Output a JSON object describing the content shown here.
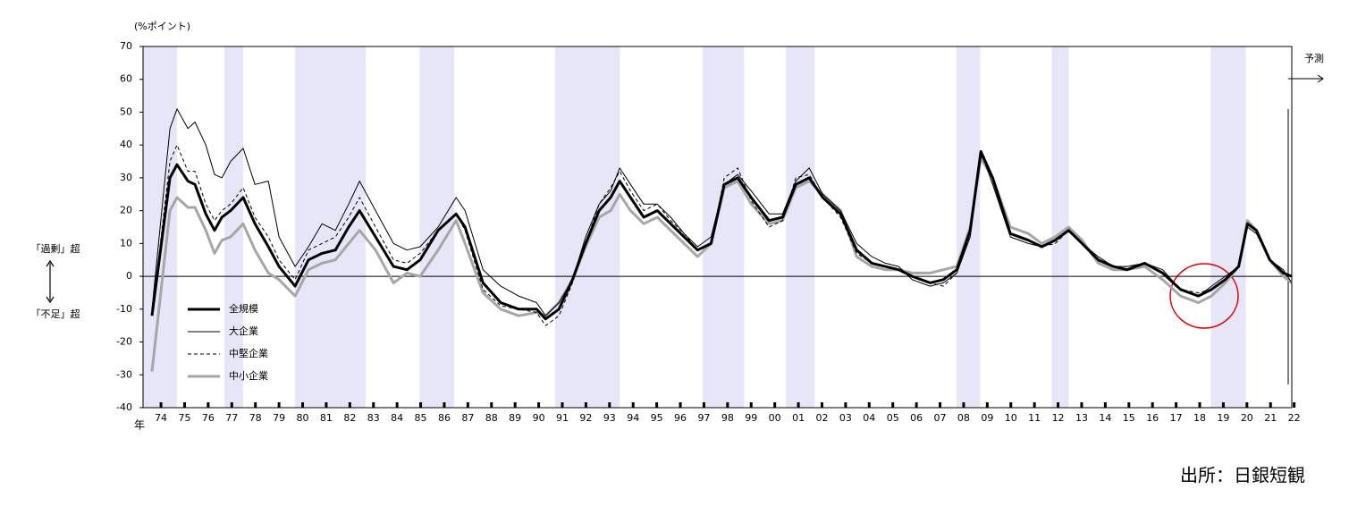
{
  "chart_data": {
    "type": "line",
    "unit_label": "(%ポイント)",
    "x_label": "年",
    "annotations": {
      "excess": "「過剰」超",
      "shortage": "「不足」超",
      "forecast": "予測"
    },
    "xlim": [
      1973.74,
      2022.4
    ],
    "ylim": [
      -40,
      70
    ],
    "yticks": [
      -40,
      -30,
      -20,
      -10,
      0,
      10,
      20,
      30,
      40,
      50,
      60,
      70
    ],
    "xticks": [
      {
        "value": 1974.5,
        "label": "74"
      },
      {
        "value": 1975.5,
        "label": "75"
      },
      {
        "value": 1976.5,
        "label": "76"
      },
      {
        "value": 1977.5,
        "label": "77"
      },
      {
        "value": 1978.5,
        "label": "78"
      },
      {
        "value": 1979.5,
        "label": "79"
      },
      {
        "value": 1980.5,
        "label": "80"
      },
      {
        "value": 1981.5,
        "label": "81"
      },
      {
        "value": 1982.5,
        "label": "82"
      },
      {
        "value": 1983.5,
        "label": "83"
      },
      {
        "value": 1984.5,
        "label": "84"
      },
      {
        "value": 1985.5,
        "label": "85"
      },
      {
        "value": 1986.5,
        "label": "86"
      },
      {
        "value": 1987.5,
        "label": "87"
      },
      {
        "value": 1988.5,
        "label": "88"
      },
      {
        "value": 1989.5,
        "label": "89"
      },
      {
        "value": 1990.5,
        "label": "90"
      },
      {
        "value": 1991.5,
        "label": "91"
      },
      {
        "value": 1992.5,
        "label": "92"
      },
      {
        "value": 1993.5,
        "label": "93"
      },
      {
        "value": 1994.5,
        "label": "94"
      },
      {
        "value": 1995.5,
        "label": "95"
      },
      {
        "value": 1996.5,
        "label": "96"
      },
      {
        "value": 1997.5,
        "label": "97"
      },
      {
        "value": 1998.5,
        "label": "98"
      },
      {
        "value": 1999.5,
        "label": "99"
      },
      {
        "value": 2000.5,
        "label": "00"
      },
      {
        "value": 2001.5,
        "label": "01"
      },
      {
        "value": 2002.5,
        "label": "02"
      },
      {
        "value": 2003.5,
        "label": "03"
      },
      {
        "value": 2004.5,
        "label": "04"
      },
      {
        "value": 2005.5,
        "label": "05"
      },
      {
        "value": 2006.5,
        "label": "06"
      },
      {
        "value": 2007.5,
        "label": "07"
      },
      {
        "value": 2008.5,
        "label": "08"
      },
      {
        "value": 2009.5,
        "label": "09"
      },
      {
        "value": 2010.5,
        "label": "10"
      },
      {
        "value": 2011.5,
        "label": "11"
      },
      {
        "value": 2012.5,
        "label": "12"
      },
      {
        "value": 2013.5,
        "label": "13"
      },
      {
        "value": 2014.5,
        "label": "14"
      },
      {
        "value": 2015.5,
        "label": "15"
      },
      {
        "value": 2016.5,
        "label": "16"
      },
      {
        "value": 2017.5,
        "label": "17"
      },
      {
        "value": 2018.5,
        "label": "18"
      },
      {
        "value": 2019.5,
        "label": "19"
      },
      {
        "value": 2020.5,
        "label": "20"
      },
      {
        "value": 2021.5,
        "label": "21"
      },
      {
        "value": 2022.5,
        "label": "22"
      }
    ],
    "shaded_periods": [
      [
        1973.74,
        1975.18
      ],
      [
        1977.19,
        1977.98
      ],
      [
        1980.18,
        1983.17
      ],
      [
        1985.45,
        1986.92
      ],
      [
        1991.2,
        1993.93
      ],
      [
        1997.45,
        1999.2
      ],
      [
        2000.98,
        2002.19
      ],
      [
        2008.2,
        2009.2
      ],
      [
        2012.23,
        2012.95
      ],
      [
        2018.97,
        2020.45
      ]
    ],
    "shade_color": "#e6e6f8",
    "x": [
      1974.12,
      1974.88,
      1975.18,
      1975.64,
      1975.94,
      1976.4,
      1976.77,
      1977.08,
      1977.45,
      1977.98,
      1978.48,
      1979.05,
      1979.5,
      1980.18,
      1980.75,
      1981.32,
      1981.89,
      1982.45,
      1982.91,
      1983.59,
      1984.35,
      1984.92,
      1985.48,
      1986.24,
      1987.0,
      1987.38,
      1988.14,
      1988.89,
      1989.65,
      1990.41,
      1990.79,
      1991.36,
      1991.93,
      1992.49,
      1993.06,
      1993.55,
      1993.93,
      1994.39,
      1994.95,
      1995.52,
      1996.09,
      1996.66,
      1997.23,
      1997.8,
      1998.36,
      1998.93,
      1999.5,
      2000.26,
      2000.83,
      2001.39,
      2001.96,
      2002.53,
      2003.29,
      2003.97,
      2004.61,
      2005.18,
      2005.75,
      2006.32,
      2007.08,
      2007.64,
      2008.21,
      2008.78,
      2009.23,
      2009.73,
      2010.48,
      2011.24,
      2011.81,
      2012.38,
      2012.95,
      2013.52,
      2014.2,
      2014.84,
      2015.42,
      2016.17,
      2016.93,
      2017.69,
      2018.44,
      2019.0,
      2019.58,
      2020.15,
      2020.52,
      2020.9,
      2021.47,
      2022.04,
      2022.4
    ],
    "series": [
      {
        "name": "全規模",
        "color": "#000000",
        "line_width": 3,
        "dashed": false,
        "values": [
          -12,
          30,
          34,
          29,
          28,
          19,
          14,
          18,
          20,
          24,
          16,
          9,
          3,
          -3,
          5,
          7,
          8,
          15,
          20,
          12,
          3,
          2,
          5,
          14,
          19,
          15,
          -2,
          -8,
          -10,
          -10,
          -13,
          -10,
          -1,
          10,
          20,
          24,
          29,
          24,
          18,
          20,
          16,
          12,
          8,
          10,
          28,
          30,
          24,
          17,
          18,
          28,
          30,
          24,
          19,
          8,
          4,
          3,
          2,
          0,
          -2,
          -1,
          2,
          14,
          38,
          30,
          13,
          11,
          9,
          11,
          14,
          10,
          5,
          3,
          2,
          4,
          1,
          -4,
          -6,
          -4,
          -1,
          3,
          16,
          14,
          5,
          1,
          0
        ]
      },
      {
        "name": "大企業",
        "color": "#000000",
        "line_width": 1,
        "dashed": false,
        "values": [
          -10,
          45,
          51,
          45,
          47,
          40,
          31,
          30,
          35,
          39,
          28,
          29,
          12,
          3,
          9,
          16,
          14,
          22,
          29,
          20,
          10,
          8,
          9,
          15,
          24,
          20,
          2,
          -3,
          -6,
          -8,
          -12,
          -8,
          -1,
          12,
          22,
          26,
          33,
          28,
          22,
          22,
          18,
          13,
          9,
          12,
          28,
          31,
          26,
          19,
          19,
          29,
          33,
          25,
          20,
          10,
          6,
          4,
          3,
          -1,
          -3,
          -2,
          1,
          12,
          38,
          28,
          12,
          10,
          9,
          11,
          14,
          10,
          6,
          3,
          3,
          4,
          2,
          -4,
          -6,
          -3,
          0,
          3,
          15,
          13,
          5,
          2,
          -2
        ]
      },
      {
        "name": "中堅企業",
        "color": "#000000",
        "line_width": 1,
        "dashed": true,
        "values": [
          -12,
          35,
          40,
          32,
          32,
          22,
          17,
          20,
          22,
          27,
          18,
          12,
          5,
          -1,
          8,
          10,
          12,
          18,
          24,
          15,
          5,
          4,
          7,
          14,
          19,
          14,
          -4,
          -9,
          -10,
          -11,
          -15,
          -12,
          -2,
          10,
          22,
          27,
          32,
          26,
          20,
          22,
          17,
          13,
          8,
          10,
          30,
          33,
          23,
          15,
          17,
          30,
          31,
          24,
          18,
          7,
          4,
          3,
          2,
          0,
          -2,
          -3,
          1,
          13,
          37,
          30,
          13,
          11,
          9,
          10,
          14,
          10,
          5,
          3,
          3,
          4,
          1,
          -4,
          -5,
          -4,
          -1,
          3,
          16,
          14,
          5,
          1,
          0
        ]
      },
      {
        "name": "中小企業",
        "color": "#a6a6a6",
        "line_width": 3,
        "dashed": false,
        "values": [
          -29,
          20,
          24,
          21,
          21,
          14,
          7,
          11,
          12,
          16,
          8,
          1,
          -1,
          -6,
          2,
          4,
          5,
          10,
          14,
          8,
          -2,
          1,
          0,
          8,
          17,
          10,
          -5,
          -10,
          -12,
          -11,
          -12,
          -8,
          -1,
          9,
          18,
          20,
          25,
          20,
          16,
          18,
          14,
          10,
          6,
          10,
          27,
          29,
          22,
          16,
          17,
          27,
          29,
          25,
          20,
          6,
          3,
          2,
          2,
          1,
          1,
          2,
          3,
          15,
          36,
          30,
          15,
          13,
          10,
          12,
          15,
          11,
          4,
          2,
          2,
          3,
          -1,
          -6,
          -8,
          -6,
          -2,
          3,
          17,
          14,
          5,
          0,
          -2
        ]
      }
    ]
  },
  "source": "出所：日銀短観"
}
